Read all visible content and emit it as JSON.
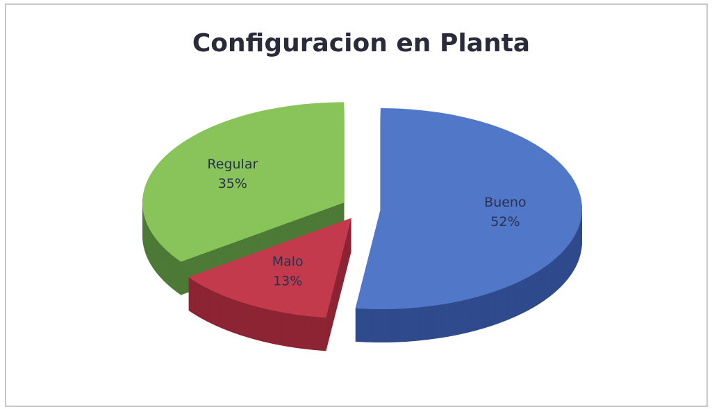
{
  "chart_data": {
    "type": "pie",
    "title": "Configuracion en Planta",
    "categories": [
      "Bueno",
      "Malo",
      "Regular"
    ],
    "values": [
      52,
      13,
      35
    ],
    "value_labels": [
      "52%",
      "13%",
      "35%"
    ],
    "colors": [
      "#5077c8",
      "#c23a4b",
      "#88c459"
    ],
    "side_colors": [
      "#2f4b8c",
      "#8c2434",
      "#4d7a36"
    ]
  }
}
